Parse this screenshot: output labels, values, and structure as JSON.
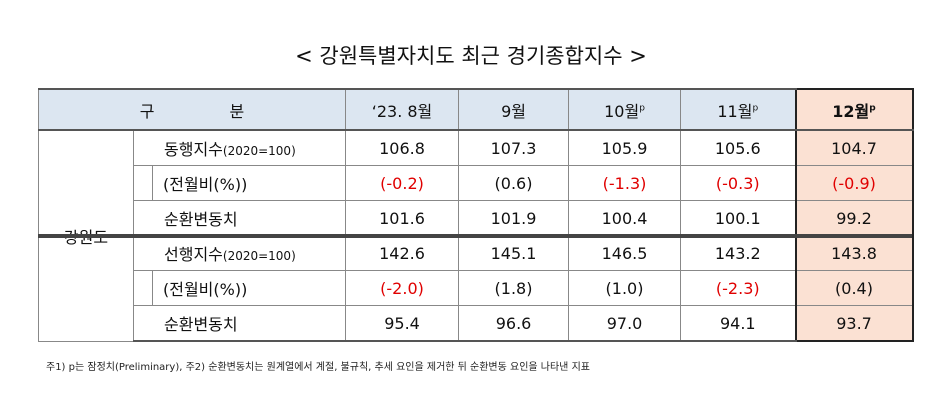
{
  "title": "< 강원특별자치도 최근 경기종합지수 >",
  "table": {
    "header": {
      "label": "구 분",
      "columns": [
        {
          "text": "‘23. 8월"
        },
        {
          "text": "9월"
        },
        {
          "text": "10월",
          "sup": "p"
        },
        {
          "text": "11월",
          "sup": "p"
        },
        {
          "text": "12월",
          "sup": "p"
        }
      ]
    },
    "region": "강원도",
    "rows": [
      {
        "label": "동행지수",
        "unit": "(2020=100)",
        "values": [
          "106.8",
          "107.3",
          "105.9",
          "105.6",
          "104.7"
        ]
      },
      {
        "label": "(전월비(%))",
        "indent": true,
        "values": [
          "(-0.2)",
          "(0.6)",
          "(-1.3)",
          "(-0.3)",
          "(-0.9)"
        ]
      },
      {
        "label": "순환변동치",
        "values": [
          "101.6",
          "101.9",
          "100.4",
          "100.1",
          "99.2"
        ]
      },
      {
        "label": "선행지수",
        "unit": "(2020=100)",
        "values": [
          "142.6",
          "145.1",
          "146.5",
          "143.2",
          "143.8"
        ]
      },
      {
        "label": "(전월비(%))",
        "indent": true,
        "values": [
          "(-2.0)",
          "(1.8)",
          "(1.0)",
          "(-2.3)",
          "(0.4)"
        ]
      },
      {
        "label": "순환변동치",
        "values": [
          "95.4",
          "96.6",
          "97.0",
          "94.1",
          "93.7"
        ]
      }
    ]
  },
  "footnote": "주1) p는 잠정치(Preliminary), 주2) 순환변동치는 원계열에서 계절, 불규칙, 추세 요인을 제거한 뒤 순환변동 요인을 나타낸 지표"
}
